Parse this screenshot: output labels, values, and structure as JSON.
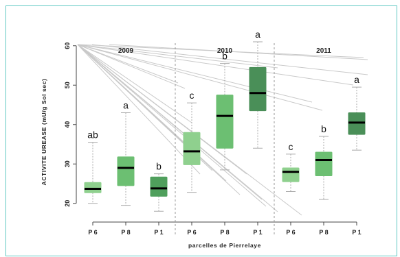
{
  "chart_data": {
    "type": "box",
    "ylabel": "ACTIVITE UREASE (mU/g Sol sec)",
    "xlabel": "parcelles de Pierrelaye",
    "ylim": [
      17,
      61
    ],
    "yticks": [
      20,
      30,
      40,
      50,
      60
    ],
    "groups": [
      "2009",
      "2010",
      "2011"
    ],
    "boxes": [
      {
        "label": "P 6",
        "group": "2009",
        "whisker_low": 20,
        "q1": 22.7,
        "median": 23.7,
        "q3": 25.3,
        "whisker_high": 35.5,
        "letter": "ab",
        "color": "#8fd08e"
      },
      {
        "label": "P 8",
        "group": "2009",
        "whisker_low": 19.5,
        "q1": 24.5,
        "median": 29,
        "q3": 31.8,
        "whisker_high": 43,
        "letter": "a",
        "color": "#6cbf72"
      },
      {
        "label": "P 1",
        "group": "2009",
        "whisker_low": 18,
        "q1": 21.8,
        "median": 23.8,
        "q3": 26.7,
        "whisker_high": 27.5,
        "letter": "b",
        "color": "#4f9f5c"
      },
      {
        "label": "P 6",
        "group": "2010",
        "whisker_low": 22.8,
        "q1": 29.8,
        "median": 33.2,
        "q3": 38,
        "whisker_high": 45.5,
        "letter": "c",
        "color": "#8fd08e"
      },
      {
        "label": "P 8",
        "group": "2010",
        "whisker_low": 28.5,
        "q1": 34,
        "median": 42.2,
        "q3": 47.5,
        "whisker_high": 55.5,
        "letter": "b",
        "color": "#6cbf72"
      },
      {
        "label": "P 1",
        "group": "2010",
        "whisker_low": 34,
        "q1": 43.5,
        "median": 48,
        "q3": 54.5,
        "whisker_high": 61,
        "letter": "a",
        "color": "#4a8f58"
      },
      {
        "label": "P 6",
        "group": "2011",
        "whisker_low": 23,
        "q1": 25.5,
        "median": 28,
        "q3": 29,
        "whisker_high": 32.5,
        "letter": "c",
        "color": "#8fd08e"
      },
      {
        "label": "P 8",
        "group": "2011",
        "whisker_low": 21,
        "q1": 27,
        "median": 31,
        "q3": 33,
        "whisker_high": 37,
        "letter": "b",
        "color": "#6cbf72"
      },
      {
        "label": "P 1",
        "group": "2011",
        "whisker_low": 33.5,
        "q1": 37.5,
        "median": 40.5,
        "q3": 43,
        "whisker_high": 49.5,
        "letter": "a",
        "color": "#4a8f58"
      }
    ],
    "grid": false,
    "legend": "none"
  }
}
